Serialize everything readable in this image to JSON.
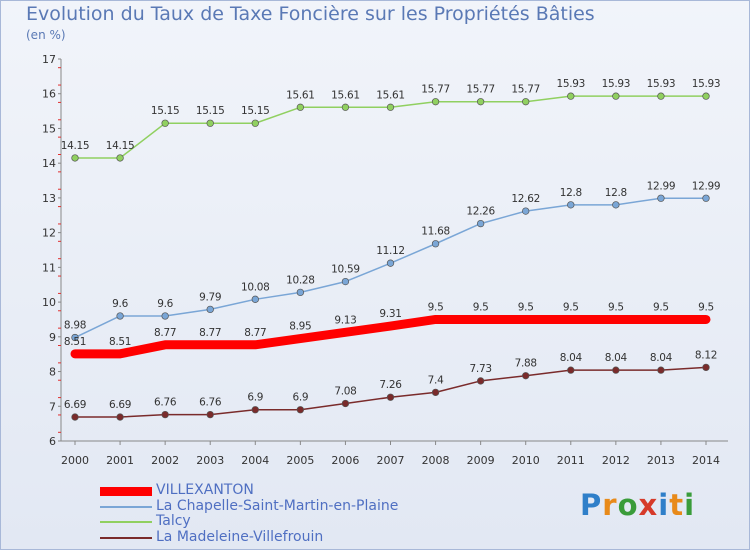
{
  "title": "Evolution du Taux de Taxe Foncière sur les Propriétés Bâties",
  "subtitle": "(en %)",
  "logo": "Proxiti",
  "chart_data": {
    "type": "line",
    "x": [
      "2000",
      "2001",
      "2002",
      "2003",
      "2004",
      "2005",
      "2006",
      "2007",
      "2008",
      "2009",
      "2010",
      "2011",
      "2012",
      "2013",
      "2014"
    ],
    "ylim": [
      6,
      17
    ],
    "yticks": [
      6,
      7,
      8,
      9,
      10,
      11,
      12,
      13,
      14,
      15,
      16,
      17
    ],
    "grid": false,
    "legend_position": "bottom-left",
    "series": [
      {
        "name": "VILLEXANTON",
        "color": "#ff0000",
        "emphasis": true,
        "values": [
          8.51,
          8.51,
          8.77,
          8.77,
          8.77,
          8.95,
          9.13,
          9.31,
          9.5,
          9.5,
          9.5,
          9.5,
          9.5,
          9.5,
          9.5
        ],
        "labels": [
          "8.51",
          "8.51",
          "8.77",
          "8.77",
          "8.77",
          "8.95",
          "9.13",
          "9.31",
          "9.5",
          "9.5",
          "9.5",
          "9.5",
          "9.5",
          "9.5",
          "9.5"
        ]
      },
      {
        "name": "La Chapelle-Saint-Martin-en-Plaine",
        "color": "#7aa6d6",
        "emphasis": false,
        "values": [
          8.98,
          9.6,
          9.6,
          9.79,
          10.08,
          10.28,
          10.59,
          11.12,
          11.68,
          12.26,
          12.62,
          12.8,
          12.8,
          12.99,
          12.99
        ],
        "labels": [
          "8.98",
          "9.6",
          "9.6",
          "9.79",
          "10.08",
          "10.28",
          "10.59",
          "11.12",
          "11.68",
          "12.26",
          "12.62",
          "12.8",
          "12.8",
          "12.99",
          "12.99"
        ]
      },
      {
        "name": "Talcy",
        "color": "#90d060",
        "emphasis": false,
        "values": [
          14.15,
          14.15,
          15.15,
          15.15,
          15.15,
          15.61,
          15.61,
          15.61,
          15.77,
          15.77,
          15.77,
          15.93,
          15.93,
          15.93,
          15.93
        ],
        "labels": [
          "14.15",
          "14.15",
          "15.15",
          "15.15",
          "15.15",
          "15.61",
          "15.61",
          "15.61",
          "15.77",
          "15.77",
          "15.77",
          "15.93",
          "15.93",
          "15.93",
          "15.93"
        ]
      },
      {
        "name": "La Madeleine-Villefrouin",
        "color": "#7a2b2b",
        "emphasis": false,
        "values": [
          6.69,
          6.69,
          6.76,
          6.76,
          6.9,
          6.9,
          7.08,
          7.26,
          7.4,
          7.73,
          7.88,
          8.04,
          8.04,
          8.04,
          8.12
        ],
        "labels": [
          "6.69",
          "6.69",
          "6.76",
          "6.76",
          "6.9",
          "6.9",
          "7.08",
          "7.26",
          "7.4",
          "7.73",
          "7.88",
          "8.04",
          "8.04",
          "8.04",
          "8.12"
        ]
      }
    ]
  }
}
